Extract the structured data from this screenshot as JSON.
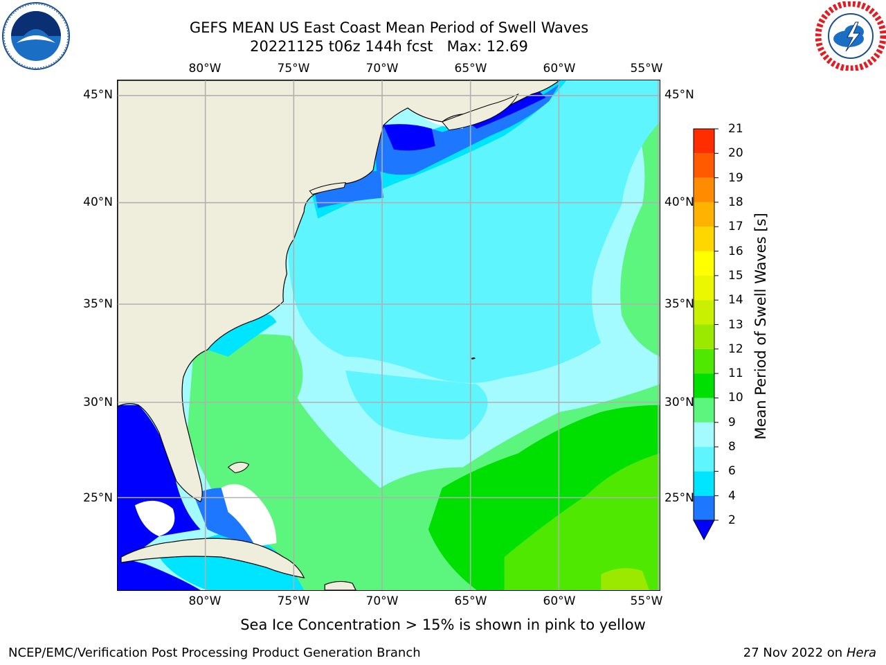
{
  "title": {
    "line1": "GEFS MEAN US East Coast Mean Period of Swell Waves",
    "line2": "20221125 t06z 144h fcst   Max: 12.69"
  },
  "axes": {
    "lon_labels": [
      "80°W",
      "75°W",
      "70°W",
      "65°W",
      "60°W",
      "55°W"
    ],
    "lat_labels": [
      "45°N",
      "40°N",
      "35°N",
      "30°N",
      "25°N"
    ],
    "lon_range": [
      -85,
      -55
    ],
    "lat_range": [
      20,
      46
    ]
  },
  "colorbar": {
    "title": "Mean Period of Swell Waves [s]",
    "ticks": [
      "2",
      "4",
      "6",
      "8",
      "9",
      "10",
      "11",
      "12",
      "13",
      "14",
      "15",
      "16",
      "17",
      "18",
      "19",
      "20",
      "21"
    ],
    "colors": [
      "#1e78ff",
      "#00e5ff",
      "#5ef5ff",
      "#a4fbff",
      "#5cf57e",
      "#00e000",
      "#4ee800",
      "#9be800",
      "#c8f000",
      "#eaf700",
      "#ffff00",
      "#ffd700",
      "#ffb300",
      "#ff8c00",
      "#ff5a00",
      "#ff2d00"
    ],
    "under_color": "#0000ff"
  },
  "footnote": "Sea Ice Concentration > 15% is shown in pink to yellow",
  "credit": {
    "left": "NCEP/EMC/Verification Post Processing Product Generation Branch",
    "right_date": "27 Nov 2022 on",
    "right_host": "Hera"
  },
  "logos": {
    "left": "noaa-logo",
    "right": "national-weather-service-logo"
  },
  "chart_data": {
    "type": "heatmap",
    "variable": "Mean Period of Swell Waves [s]",
    "max": 12.69,
    "levels": [
      2,
      4,
      6,
      8,
      9,
      10,
      11,
      12,
      13,
      14,
      15,
      16,
      17,
      18,
      19,
      20,
      21
    ],
    "grid": true,
    "land_color": "#efeddc",
    "missing_color": "#ffffff"
  }
}
